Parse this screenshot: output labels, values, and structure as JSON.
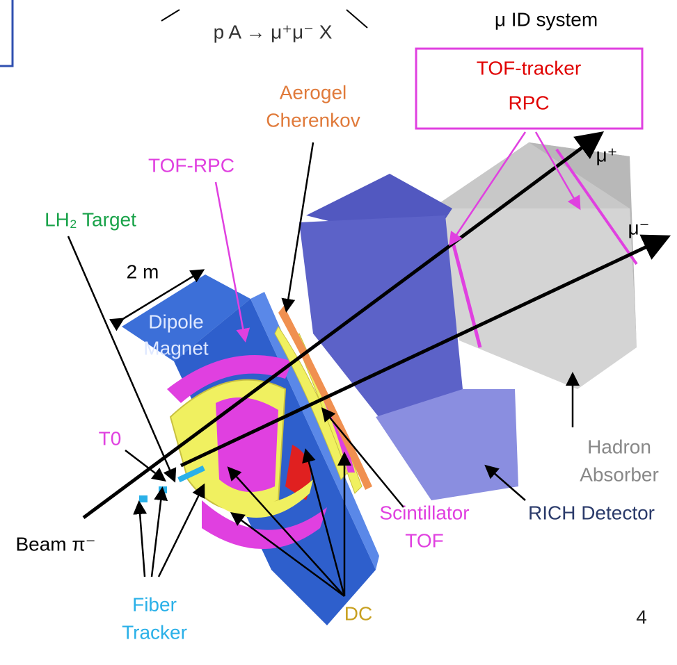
{
  "formula": "p A → μ⁺μ⁻ X",
  "id_system": {
    "title": "μ ID system",
    "box_lines": [
      "TOF-tracker",
      "RPC"
    ]
  },
  "labels": {
    "aerogel": [
      "Aerogel",
      "Cherenkov"
    ],
    "tof_rpc": "TOF-RPC",
    "lh2_target": "LH₂ Target",
    "scale": "2 m",
    "dipole": [
      "Dipole",
      "Magnet"
    ],
    "mu_plus": "μ⁺",
    "mu_minus": "μ⁻",
    "t0": "T0",
    "hadron": [
      "Hadron",
      "Absorber"
    ],
    "rich": "RICH Detector",
    "scint": [
      "Scintillator",
      "TOF"
    ],
    "beam": "Beam π⁻",
    "fiber": [
      "Fiber",
      "Tracker"
    ],
    "dc": "DC"
  },
  "page_number": "4"
}
